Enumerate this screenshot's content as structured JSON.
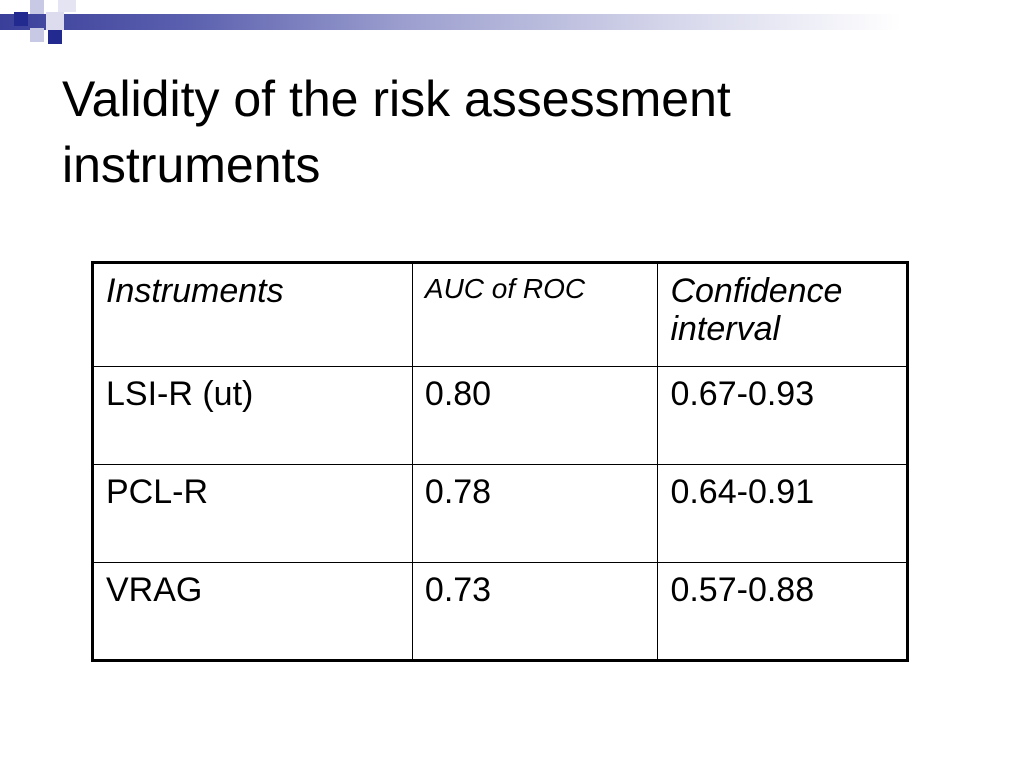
{
  "slide": {
    "title": "Validity of the risk assessment instruments"
  },
  "table": {
    "headers": [
      "Instruments",
      "AUC of ROC",
      "Confidence interval"
    ],
    "rows": [
      [
        "LSI-R (ut)",
        "0.80",
        "0.67-0.93"
      ],
      [
        "PCL-R",
        "0.78",
        "0.64-0.91"
      ],
      [
        "VRAG",
        "0.73",
        "0.57-0.88"
      ]
    ]
  },
  "colors": {
    "accent_dark": "#232a8f",
    "accent_light": "#c8c9e4",
    "text": "#000000",
    "background": "#ffffff"
  }
}
